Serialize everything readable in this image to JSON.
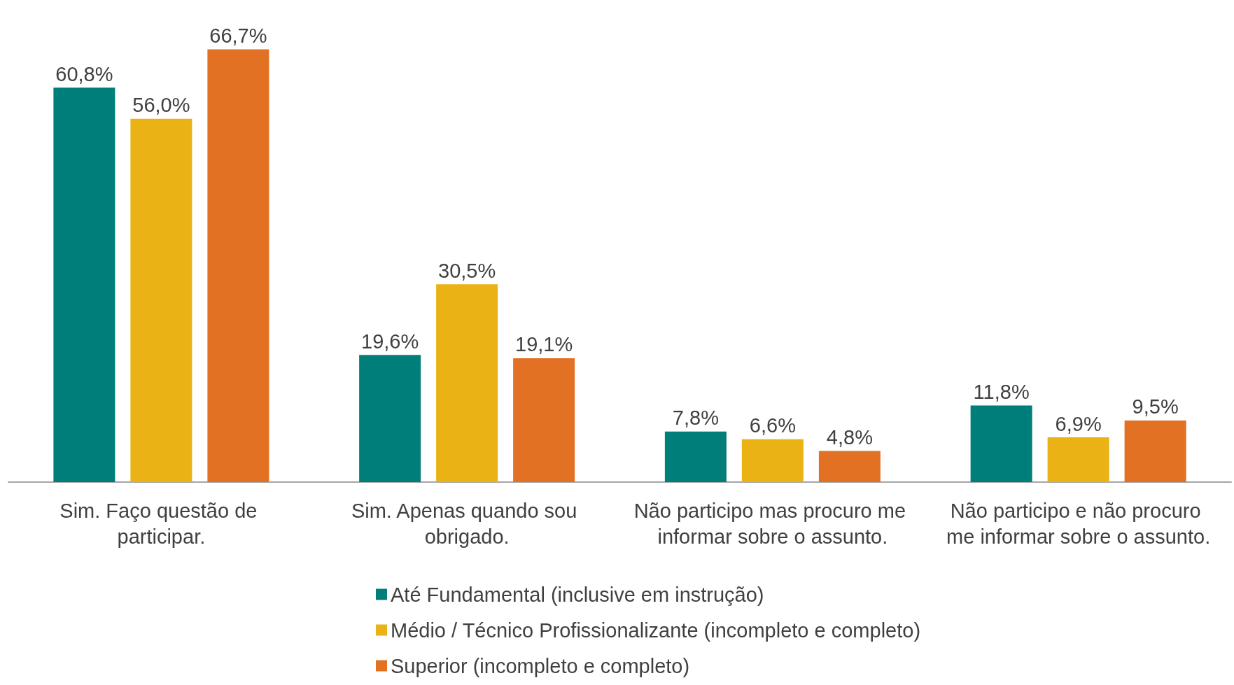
{
  "chart_data": {
    "type": "bar",
    "categories": [
      "Sim. Faço questão de participar.",
      "Sim. Apenas quando sou obrigado.",
      "Não participo mas procuro me informar sobre o assunto.",
      "Não participo e não procuro me informar sobre o assunto."
    ],
    "series": [
      {
        "name": "Até Fundamental (inclusive em instrução)",
        "color": "#007f7a",
        "values": [
          60.8,
          19.6,
          7.8,
          11.8
        ],
        "value_labels": [
          "60,8%",
          "19,6%",
          "7,8%",
          "11,8%"
        ]
      },
      {
        "name": "Médio / Técnico Profissionalizante (incompleto e completo)",
        "color": "#ebb215",
        "values": [
          56.0,
          30.5,
          6.6,
          6.9
        ],
        "value_labels": [
          "56,0%",
          "30,5%",
          "6,6%",
          "6,9%"
        ]
      },
      {
        "name": "Superior (incompleto e completo)",
        "color": "#e37124",
        "values": [
          66.7,
          19.1,
          4.8,
          9.5
        ],
        "value_labels": [
          "66,7%",
          "19,1%",
          "4,8%",
          "9,5%"
        ]
      }
    ],
    "legend": "bottom"
  }
}
